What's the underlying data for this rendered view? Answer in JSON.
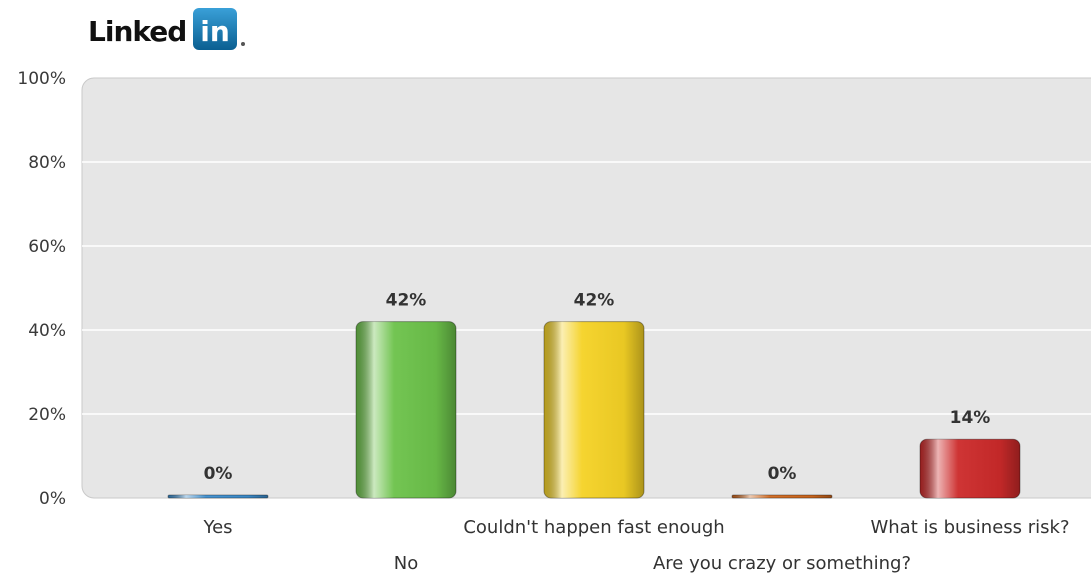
{
  "logo": {
    "brand_text": "Linked",
    "badge_text": "in",
    "badge_color": "#0e76a8"
  },
  "chart_data": {
    "type": "bar",
    "categories": [
      "Yes",
      "No",
      "Couldn't happen fast enough",
      "Are you crazy or something?",
      "What is business risk?"
    ],
    "values": [
      0,
      42,
      42,
      0,
      14
    ],
    "value_labels": [
      "0%",
      "42%",
      "42%",
      "0%",
      "14%"
    ],
    "colors": [
      "#3d8fd0",
      "#6cc24a",
      "#f5d225",
      "#d2691e",
      "#cc2a2a"
    ],
    "ylim": [
      0,
      100
    ],
    "yticks": [
      0,
      20,
      40,
      60,
      80,
      100
    ],
    "ytick_labels": [
      "0%",
      "20%",
      "40%",
      "60%",
      "80%",
      "100%"
    ],
    "title": "",
    "xlabel": "",
    "ylabel": "",
    "grid": true,
    "legend": "none"
  }
}
